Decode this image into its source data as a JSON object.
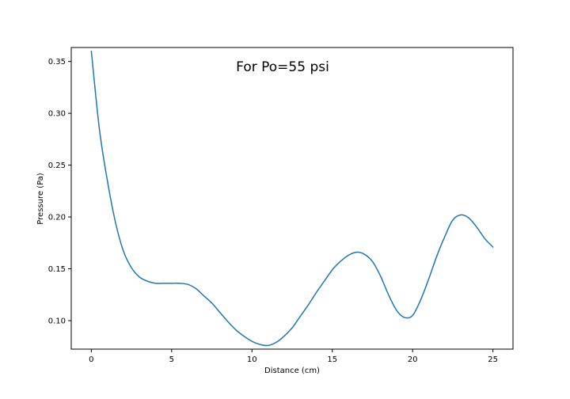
{
  "chart_data": {
    "type": "line",
    "title": "For Po=55 psi",
    "xlabel": "Distance (cm)",
    "ylabel": "Pressure (Pa)",
    "xlim": [
      -1.25,
      26.25
    ],
    "ylim": [
      0.0725,
      0.3635
    ],
    "grid": false,
    "xticks": [
      "0",
      "5",
      "10",
      "15",
      "20",
      "25"
    ],
    "yticks": [
      "0.10",
      "0.15",
      "0.20",
      "0.25",
      "0.30",
      "0.35"
    ],
    "line_color": "#1f77b4",
    "series": [
      {
        "x": [
          0,
          0.5,
          1,
          1.5,
          2,
          2.5,
          3,
          3.5,
          4,
          4.5,
          5,
          5.5,
          6,
          6.5,
          7,
          7.5,
          8,
          8.5,
          9,
          9.5,
          10,
          10.5,
          11,
          11.5,
          12,
          12.5,
          13,
          13.5,
          14,
          14.5,
          15,
          15.5,
          16,
          16.5,
          17,
          17.5,
          18,
          18.5,
          19,
          19.5,
          20,
          20.5,
          21,
          21.5,
          22,
          22.5,
          23,
          23.5,
          24,
          24.5,
          25
        ],
        "y": [
          0.36,
          0.285,
          0.235,
          0.195,
          0.167,
          0.151,
          0.142,
          0.138,
          0.136,
          0.136,
          0.136,
          0.136,
          0.135,
          0.131,
          0.124,
          0.117,
          0.108,
          0.099,
          0.091,
          0.085,
          0.08,
          0.077,
          0.076,
          0.079,
          0.085,
          0.093,
          0.104,
          0.115,
          0.127,
          0.138,
          0.149,
          0.157,
          0.163,
          0.166,
          0.164,
          0.157,
          0.143,
          0.125,
          0.11,
          0.103,
          0.105,
          0.12,
          0.14,
          0.162,
          0.181,
          0.197,
          0.202,
          0.199,
          0.19,
          0.179,
          0.171
        ]
      }
    ]
  }
}
